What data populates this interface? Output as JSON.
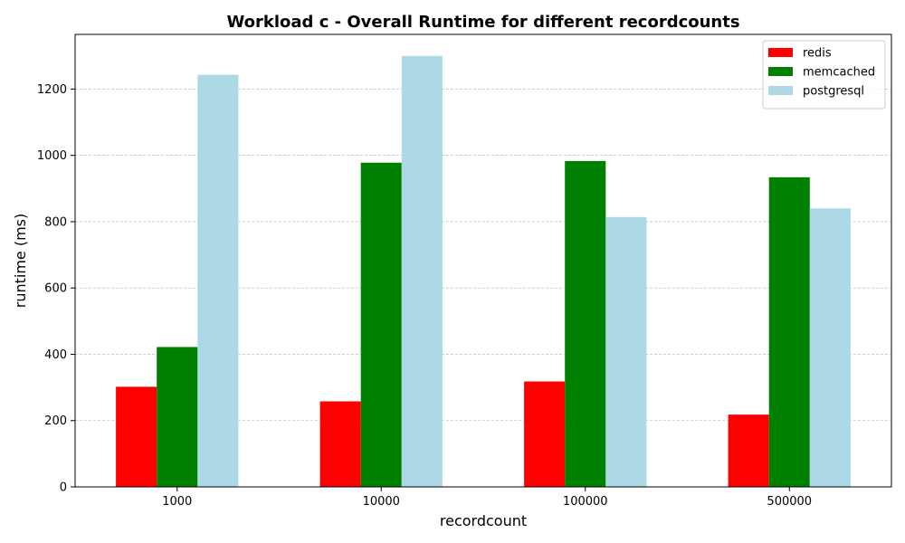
{
  "chart_data": {
    "type": "bar",
    "title": "Workload c - Overall Runtime for different recordcounts",
    "xlabel": "recordcount",
    "ylabel": "runtime (ms)",
    "categories": [
      "1000",
      "10000",
      "100000",
      "500000"
    ],
    "series": [
      {
        "name": "redis",
        "color": "#ff0000",
        "values": [
          302,
          258,
          318,
          218
        ]
      },
      {
        "name": "memcached",
        "color": "#008000",
        "values": [
          422,
          978,
          983,
          934
        ]
      },
      {
        "name": "postgresql",
        "color": "#add8e6",
        "values": [
          1243,
          1300,
          814,
          840
        ]
      }
    ],
    "ylim": [
      0,
      1365
    ],
    "yticks": [
      0,
      200,
      400,
      600,
      800,
      1000,
      1200
    ],
    "grid": "y-dashed",
    "legend_position": "top-right"
  }
}
